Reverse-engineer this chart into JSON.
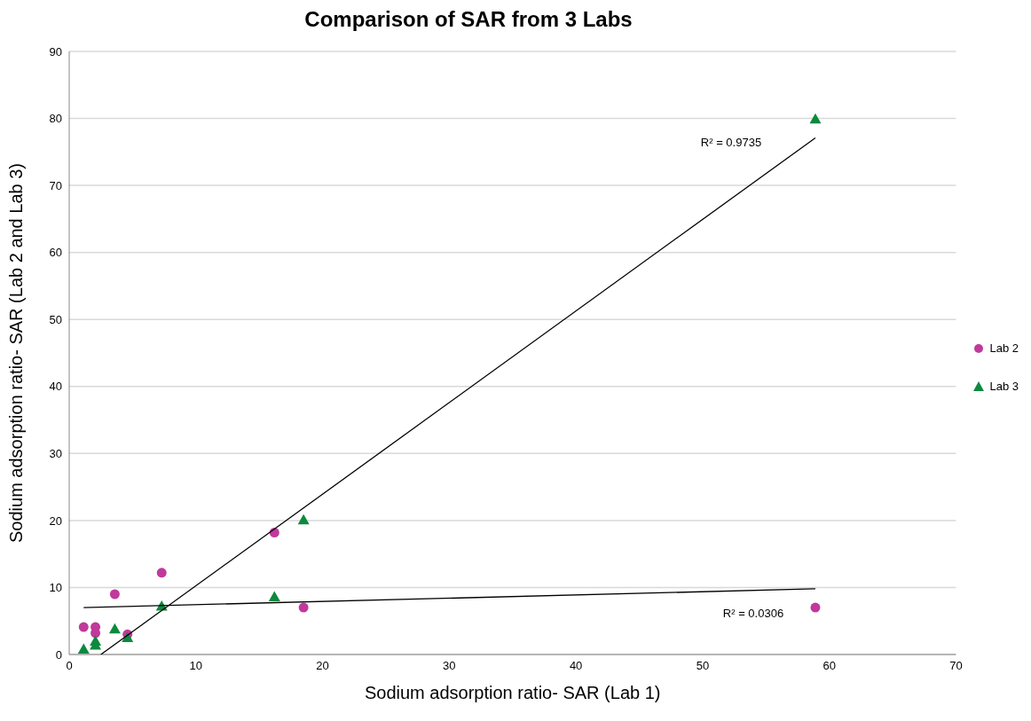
{
  "chart_data": {
    "type": "scatter",
    "title": "Comparison of SAR from 3 Labs",
    "xlabel": "Sodium adsorption ratio- SAR (Lab 1)",
    "ylabel": "Sodium adsorption ratio- SAR (Lab 2 and Lab 3)",
    "xlim": [
      0,
      70
    ],
    "xticks": [
      0,
      10,
      20,
      30,
      40,
      50,
      60,
      70
    ],
    "ylim": [
      0,
      90
    ],
    "yticks": [
      0,
      10,
      20,
      30,
      40,
      50,
      60,
      70,
      80,
      90
    ],
    "grid": "y",
    "legend": "right",
    "series": [
      {
        "name": "Lab 2",
        "color": "#c0399b",
        "marker": "circle",
        "x": [
          1.14,
          2.07,
          2.07,
          3.6,
          4.6,
          7.3,
          16.2,
          18.5,
          58.9
        ],
        "values": [
          4.1,
          4.1,
          3.2,
          9.0,
          3.0,
          12.2,
          18.2,
          7.0,
          7.0
        ]
      },
      {
        "name": "Lab 3",
        "color": "#0b8a3e",
        "marker": "triangle",
        "x": [
          1.14,
          2.07,
          2.07,
          3.6,
          4.6,
          7.3,
          16.2,
          18.5,
          58.9
        ],
        "values": [
          0.8,
          2.0,
          1.4,
          3.8,
          2.5,
          7.2,
          8.6,
          20.1,
          79.9
        ]
      },
      {
        "type": "line",
        "color": "#000000",
        "x": [
          2.5,
          58.9
        ],
        "values": [
          0,
          77.1
        ]
      },
      {
        "type": "line",
        "color": "#000000",
        "x": [
          1.14,
          58.9
        ],
        "values": [
          7.0,
          9.8
        ]
      }
    ],
    "annotations": [
      "R² = 0.9735",
      "R² = 0.0306"
    ]
  }
}
